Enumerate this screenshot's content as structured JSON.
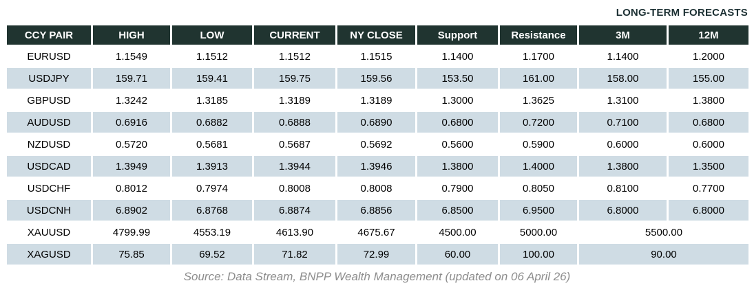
{
  "chart_data": {
    "type": "table",
    "title": "LONG-TERM FORECASTS",
    "columns": [
      "CCY PAIR",
      "HIGH",
      "LOW",
      "CURRENT",
      "NY CLOSE",
      "Support",
      "Resistance",
      "3M",
      "12M"
    ],
    "rows": [
      {
        "pair": "EURUSD",
        "values": [
          "1.1549",
          "1.1512",
          "1.1512",
          "1.1515",
          "1.1400",
          "1.1700",
          "1.1400",
          "1.2000"
        ]
      },
      {
        "pair": "USDJPY",
        "values": [
          "159.71",
          "159.41",
          "159.75",
          "159.56",
          "153.50",
          "161.00",
          "158.00",
          "155.00"
        ]
      },
      {
        "pair": "GBPUSD",
        "values": [
          "1.3242",
          "1.3185",
          "1.3189",
          "1.3189",
          "1.3000",
          "1.3625",
          "1.3100",
          "1.3800"
        ]
      },
      {
        "pair": "AUDUSD",
        "values": [
          "0.6916",
          "0.6882",
          "0.6888",
          "0.6890",
          "0.6800",
          "0.7200",
          "0.7100",
          "0.6800"
        ]
      },
      {
        "pair": "NZDUSD",
        "values": [
          "0.5720",
          "0.5681",
          "0.5687",
          "0.5692",
          "0.5600",
          "0.5900",
          "0.6000",
          "0.6000"
        ]
      },
      {
        "pair": "USDCAD",
        "values": [
          "1.3949",
          "1.3913",
          "1.3944",
          "1.3946",
          "1.3800",
          "1.4000",
          "1.3800",
          "1.3500"
        ]
      },
      {
        "pair": "USDCHF",
        "values": [
          "0.8012",
          "0.7974",
          "0.8008",
          "0.8008",
          "0.7900",
          "0.8050",
          "0.8100",
          "0.7700"
        ]
      },
      {
        "pair": "USDCNH",
        "values": [
          "6.8902",
          "6.8768",
          "6.8874",
          "6.8856",
          "6.8500",
          "6.9500",
          "6.8000",
          "6.8000"
        ]
      },
      {
        "pair": "XAUUSD",
        "values": [
          "4799.99",
          "4553.19",
          "4613.90",
          "4675.67",
          "4500.00",
          "5000.00",
          "5500.00"
        ],
        "forecast_merged": true
      },
      {
        "pair": "XAGUSD",
        "values": [
          "75.85",
          "69.52",
          "71.82",
          "72.99",
          "60.00",
          "100.00",
          "90.00"
        ],
        "forecast_merged": true
      }
    ],
    "source": "Source: Data Stream, BNPP Wealth Management (updated on 06 April 26)",
    "layout_hints": {
      "stripe_rows": "alternating, second row shaded",
      "merged_note": "3M and 12M columns merged into one forecast cell for XAUUSD and XAGUSD"
    }
  },
  "colors": {
    "header_bg": "#203430",
    "stripe_bg": "#cfdce4",
    "title_text": "#1d3134",
    "header_text": "#ffffff",
    "data_text": "#000000",
    "source_text": "#8d8d8d",
    "page_bg": "#ffffff"
  }
}
